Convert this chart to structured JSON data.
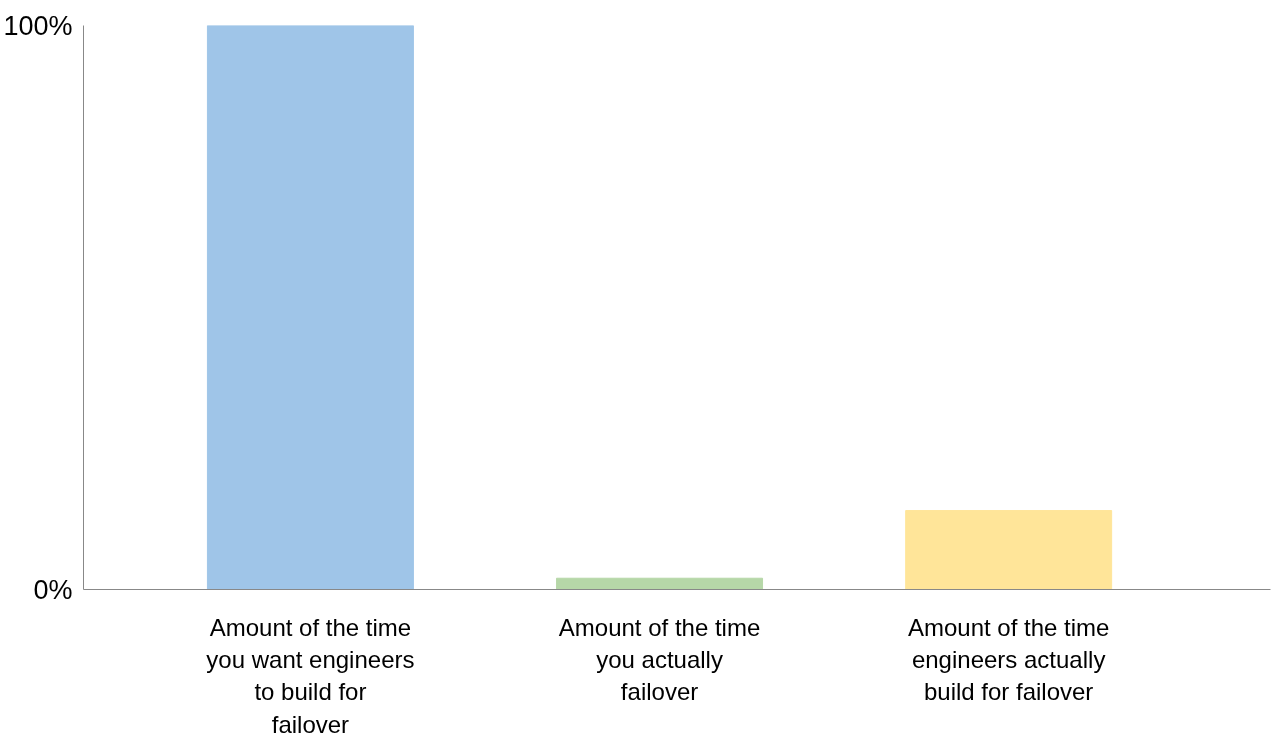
{
  "chart_data": {
    "type": "bar",
    "categories": [
      "Amount of the time you want engineers to build for failover",
      "Amount of the time you actually failover",
      "Amount of the time engineers actually build for failover"
    ],
    "values": [
      100,
      2,
      14
    ],
    "colors": [
      "#9fc5e8",
      "#b6d7a8",
      "#ffe599"
    ],
    "ylim": [
      0,
      100
    ],
    "yticks": [
      {
        "value": 0,
        "label": "0%"
      },
      {
        "value": 100,
        "label": "100%"
      }
    ],
    "grid": false
  }
}
